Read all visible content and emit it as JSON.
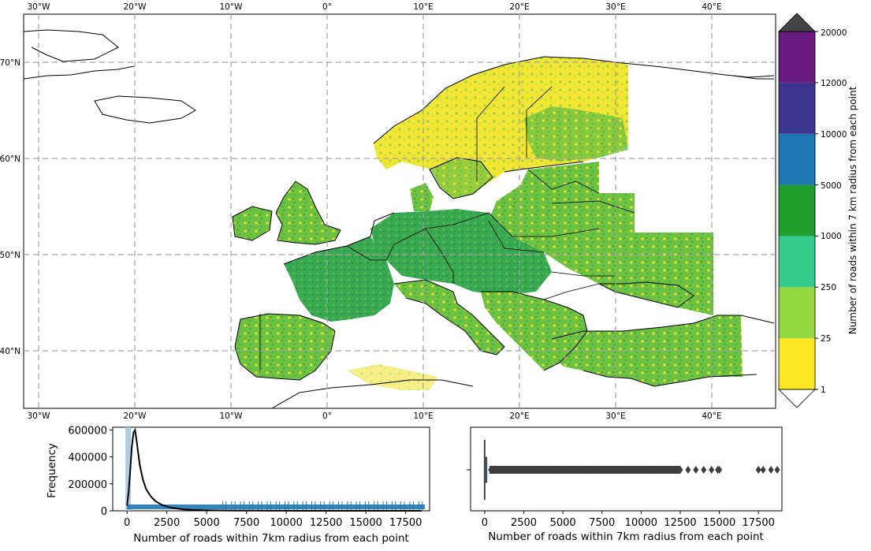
{
  "map": {
    "lon_labels": [
      "30°W",
      "20°W",
      "10°W",
      "0°",
      "10°E",
      "20°E",
      "30°E",
      "40°E"
    ],
    "lat_labels": [
      "70°N",
      "60°N",
      "50°N",
      "40°N"
    ],
    "gridlines": "dashed"
  },
  "colorbar": {
    "label": "Number of roads within 7 km radius from each point",
    "tick_labels": [
      "1",
      "25",
      "250",
      "1000",
      "5000",
      "10000",
      "12000",
      "20000"
    ],
    "colors": [
      "#fde725",
      "#93d741",
      "#35c98a",
      "#1f9e2e",
      "#1f77b4",
      "#3e3590",
      "#681a7e"
    ],
    "over_color": "#444444",
    "under_color": "#ffffff"
  },
  "chart_data": [
    {
      "type": "histogram",
      "xlabel": "Number of roads within 7km radius from each point",
      "ylabel": "Frequency",
      "x_ticks": [
        "0",
        "2500",
        "5000",
        "7500",
        "10000",
        "12500",
        "15000",
        "17500"
      ],
      "y_ticks": [
        "0",
        "200000",
        "400000",
        "600000"
      ],
      "xlim": [
        -900,
        19000
      ],
      "ylim": [
        0,
        620000
      ],
      "bars": [
        {
          "x0": 0,
          "x1": 140,
          "value": 620000
        }
      ],
      "kde": {
        "x": [
          0,
          100,
          200,
          300,
          400,
          500,
          600,
          800,
          1000,
          1200,
          1500,
          1800,
          2200,
          2600,
          3000,
          3500,
          4000,
          5000,
          6000,
          7000,
          8000,
          9000,
          10000,
          12000,
          14000,
          16000,
          17500,
          18500
        ],
        "y": [
          40000,
          140000,
          300000,
          470000,
          580000,
          600000,
          520000,
          340000,
          230000,
          160000,
          105000,
          70000,
          43000,
          28000,
          18000,
          11000,
          7000,
          4000,
          2500,
          1500,
          1000,
          600,
          400,
          200,
          100,
          50,
          20,
          10
        ]
      },
      "rug_range": [
        0,
        18700
      ]
    },
    {
      "type": "boxplot",
      "xlabel": "Number of roads within 7km radius from each point",
      "x_ticks": [
        "0",
        "2500",
        "5000",
        "7500",
        "10000",
        "12500",
        "15000",
        "17500"
      ],
      "xlim": [
        -900,
        19000
      ],
      "box": {
        "q1": 20,
        "median": 60,
        "q3": 140,
        "whisker_low": 1,
        "whisker_high": 300
      },
      "outliers": [
        400,
        600,
        800,
        1000,
        1500,
        2000,
        2500,
        3000,
        4000,
        5000,
        6000,
        7000,
        8000,
        9000,
        10000,
        11000,
        12000,
        12500,
        13000,
        13500,
        14000,
        14500,
        14900,
        15000,
        17500,
        17800,
        18300,
        18700
      ]
    }
  ]
}
